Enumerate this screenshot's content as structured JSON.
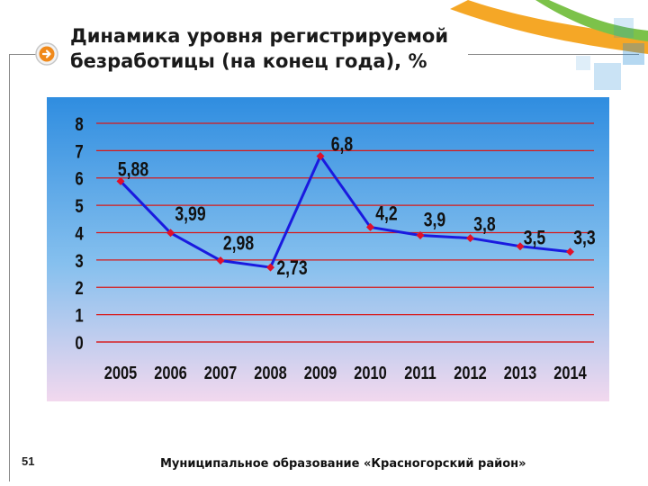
{
  "slide": {
    "title_line1": "Динамика уровня регистрируемой",
    "title_line2": "безработицы (на конец года), %",
    "page_number": "51",
    "footer": "Муниципальное образование «Красногорский район»"
  },
  "colors": {
    "line": "#1a1adf",
    "marker": "#e0102a",
    "gridline": "#d81818",
    "bg_top": "#2f8de0",
    "bg_bottom": "#f2d8ee",
    "accent_orange": "#f4a21a",
    "accent_green": "#7cc24a",
    "accent_blue": "#2a8fd6"
  },
  "icons": {
    "bullet": "arrow-right-circle-icon"
  },
  "chart_data": {
    "type": "line",
    "title": "Динамика уровня регистрируемой безработицы (на конец года), %",
    "xlabel": "",
    "ylabel": "",
    "grid": true,
    "legend": "none",
    "categories": [
      "2005",
      "2006",
      "2007",
      "2008",
      "2009",
      "2010",
      "2011",
      "2012",
      "2013",
      "2014"
    ],
    "values": [
      5.88,
      3.99,
      2.98,
      2.73,
      6.8,
      4.2,
      3.9,
      3.8,
      3.5,
      3.3
    ],
    "data_labels": [
      "5,88",
      "3,99",
      "2,98",
      "2,73",
      "6,8",
      "4,2",
      "3,9",
      "3,8",
      "3,5",
      "3,3"
    ],
    "ylim": [
      0,
      8
    ],
    "yticks": [
      "0",
      "1",
      "2",
      "3",
      "4",
      "5",
      "6",
      "7",
      "8"
    ]
  }
}
